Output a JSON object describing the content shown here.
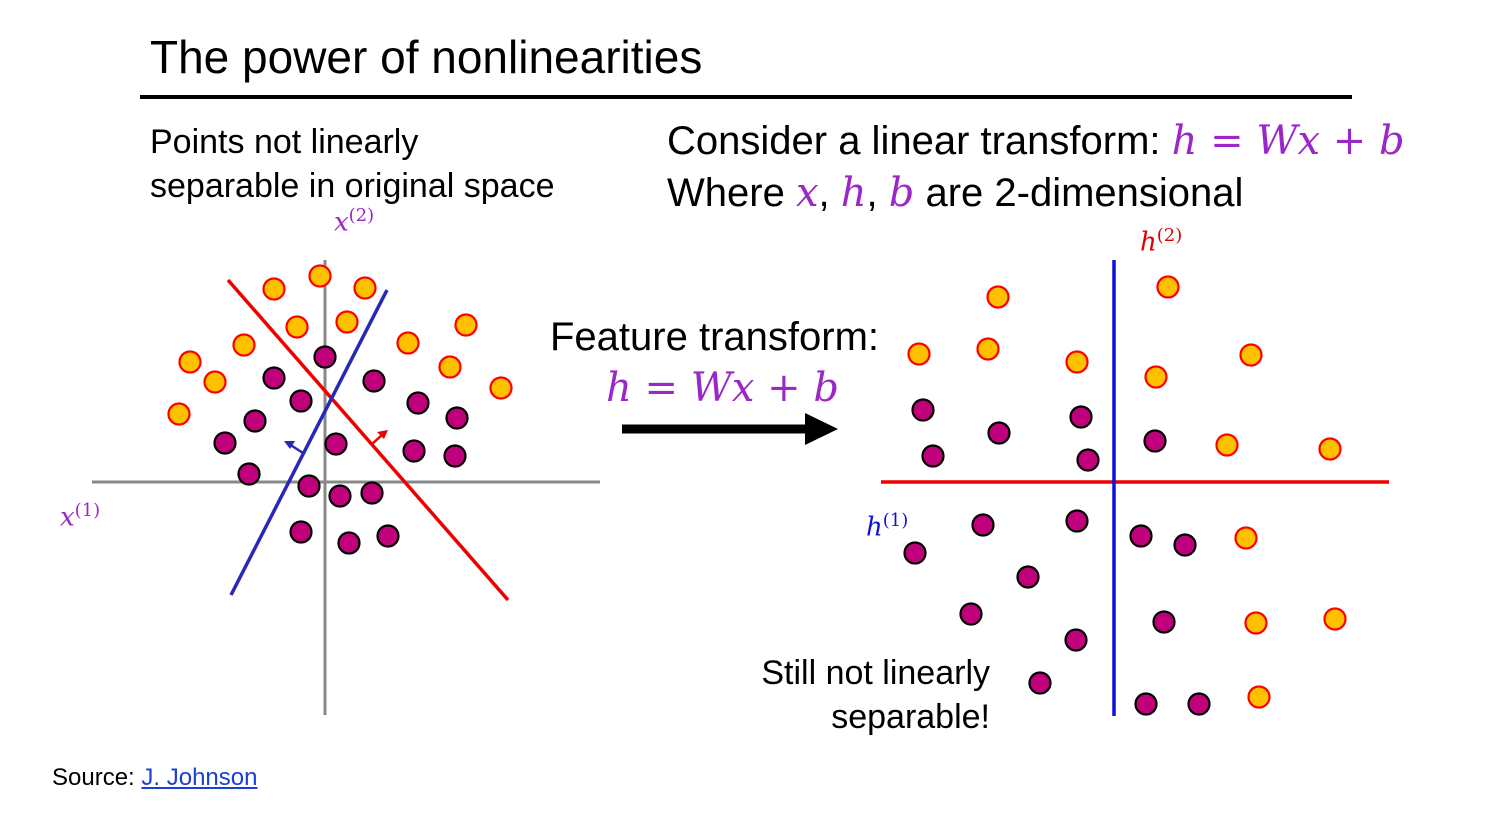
{
  "slide": {
    "title": "The power of nonlinearities",
    "left_caption_line1": "Points not linearly",
    "left_caption_line2": "separable in original space",
    "consider_text": "Consider a linear transform: ",
    "where_text": "Where ",
    "where_suffix": " are 2-dimensional",
    "feature_transform_label": "Feature transform:",
    "still_line1": "Still not linearly",
    "still_line2": "separable!",
    "source_prefix": "Source: ",
    "source_link": "J. Johnson"
  },
  "math": {
    "equation_h": "h",
    "equation_eq": " = ",
    "equation_rhs": "Wx + b",
    "var_x": "x",
    "var_h": "h",
    "var_b": "b",
    "comma": ", "
  },
  "axes": {
    "left_x_name": "x",
    "left_x_sup": "(1)",
    "left_y_name": "x",
    "left_y_sup": "(2)",
    "right_x_name": "h",
    "right_x_sup": "(1)",
    "right_y_name": "h",
    "right_y_sup": "(2)"
  },
  "colors": {
    "orange_fill": "#ffc000",
    "orange_stroke": "#ff0000",
    "purple_fill": "#c0007a",
    "dot_stroke": "#000000",
    "math_purple": "#9b27c8",
    "red_line": "#ee0000",
    "blue_line": "#2020dd",
    "axis_gray": "#888888",
    "arrow_black": "#000000"
  }
}
